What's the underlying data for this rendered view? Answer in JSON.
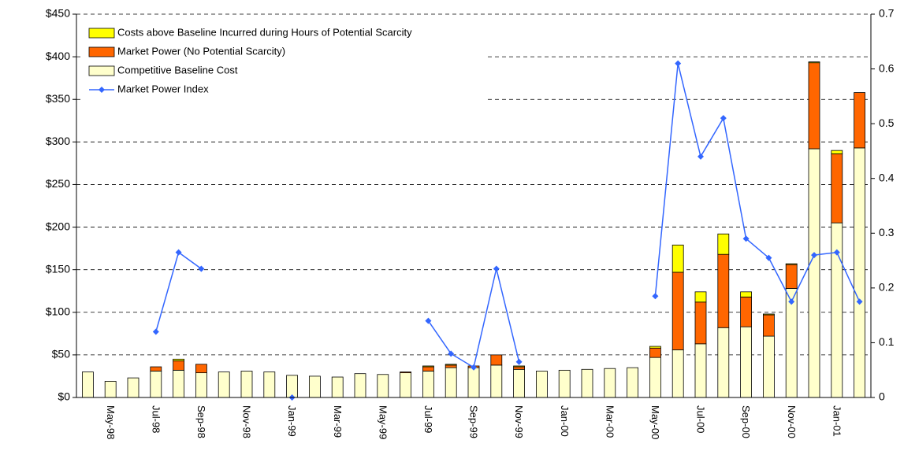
{
  "chart_data": {
    "type": "bar",
    "categories": [
      null,
      "May-98",
      null,
      "Jul-98",
      null,
      "Sep-98",
      null,
      "Nov-98",
      null,
      "Jan-99",
      null,
      "Mar-99",
      null,
      "May-99",
      null,
      "Jul-99",
      null,
      "Sep-99",
      null,
      "Nov-99",
      null,
      "Jan-00",
      null,
      "Mar-00",
      null,
      "May-00",
      null,
      "Jul-00",
      null,
      "Sep-00",
      null,
      "Nov-00",
      null,
      "Jan-01",
      null
    ],
    "series": [
      {
        "name": "Competitive Baseline Cost",
        "type": "bar",
        "color": "#ffffcc",
        "values": [
          30,
          19,
          23,
          31,
          32,
          29,
          30,
          31,
          30,
          26,
          25,
          24,
          28,
          27,
          29,
          31,
          35,
          35,
          38,
          33,
          31,
          32,
          33,
          34,
          35,
          47,
          56,
          63,
          82,
          83,
          72,
          128,
          292,
          205,
          293
        ]
      },
      {
        "name": "Market Power (No Potential Scarcity)",
        "type": "bar",
        "color": "#ff6600",
        "values": [
          0,
          0,
          0,
          5,
          11,
          10,
          0,
          0,
          0,
          0,
          0,
          0,
          0,
          0,
          1,
          5,
          3,
          2,
          12,
          3,
          0,
          0,
          0,
          0,
          0,
          11,
          91,
          49,
          86,
          35,
          25,
          28,
          101,
          81,
          65
        ]
      },
      {
        "name": "Costs above Baseline Incurred during Hours of Potential Scarcity",
        "type": "bar",
        "color": "#ffff00",
        "values": [
          0,
          0,
          0,
          0,
          2,
          0,
          0,
          0,
          0,
          0,
          0,
          0,
          0,
          0,
          0,
          1,
          1,
          0,
          0,
          1,
          0,
          0,
          0,
          0,
          0,
          2,
          32,
          12,
          24,
          6,
          1,
          1,
          1,
          4,
          0
        ]
      },
      {
        "name": "Market Power Index",
        "type": "line",
        "axis": "y2",
        "color": "#3366ff",
        "values": [
          null,
          null,
          null,
          0.12,
          0.265,
          0.235,
          null,
          null,
          null,
          0,
          null,
          null,
          null,
          null,
          null,
          0.14,
          0.08,
          0.055,
          0.235,
          0.065,
          null,
          null,
          null,
          null,
          null,
          0.185,
          0.61,
          0.44,
          0.51,
          0.29,
          0.255,
          0.175,
          0.26,
          0.265,
          0.175
        ]
      }
    ],
    "ylim": [
      0,
      450
    ],
    "yticks": [
      {
        "value": 0,
        "label": "$0"
      },
      {
        "value": 50,
        "label": "$50"
      },
      {
        "value": 100,
        "label": "$100"
      },
      {
        "value": 150,
        "label": "$150"
      },
      {
        "value": 200,
        "label": "$200"
      },
      {
        "value": 250,
        "label": "$250"
      },
      {
        "value": 300,
        "label": "$300"
      },
      {
        "value": 350,
        "label": "$350"
      },
      {
        "value": 400,
        "label": "$400"
      },
      {
        "value": 450,
        "label": "$450"
      }
    ],
    "y2lim": [
      0,
      0.7
    ],
    "y2ticks": [
      0,
      0.1,
      0.2,
      0.3,
      0.4,
      0.5,
      0.6,
      0.7
    ],
    "grid": true
  }
}
